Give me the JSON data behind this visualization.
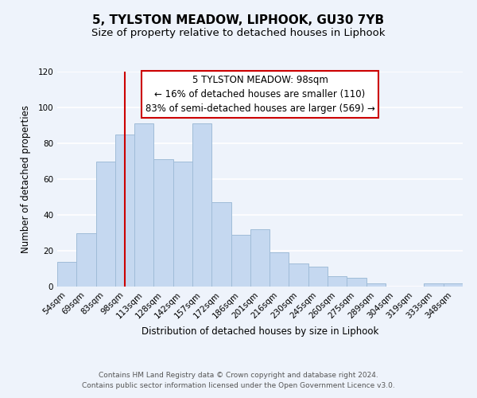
{
  "title": "5, TYLSTON MEADOW, LIPHOOK, GU30 7YB",
  "subtitle": "Size of property relative to detached houses in Liphook",
  "xlabel": "Distribution of detached houses by size in Liphook",
  "ylabel": "Number of detached properties",
  "bar_labels": [
    "54sqm",
    "69sqm",
    "83sqm",
    "98sqm",
    "113sqm",
    "128sqm",
    "142sqm",
    "157sqm",
    "172sqm",
    "186sqm",
    "201sqm",
    "216sqm",
    "230sqm",
    "245sqm",
    "260sqm",
    "275sqm",
    "289sqm",
    "304sqm",
    "319sqm",
    "333sqm",
    "348sqm"
  ],
  "bar_heights": [
    14,
    30,
    70,
    85,
    91,
    71,
    70,
    91,
    47,
    29,
    32,
    19,
    13,
    11,
    6,
    5,
    2,
    0,
    0,
    2,
    2
  ],
  "bar_color": "#c5d8f0",
  "bar_edge_color": "#a0bcd8",
  "vline_x_index": 3,
  "vline_color": "#cc0000",
  "annotation_line1": "5 TYLSTON MEADOW: 98sqm",
  "annotation_line2": "← 16% of detached houses are smaller (110)",
  "annotation_line3": "83% of semi-detached houses are larger (569) →",
  "box_edge_color": "#cc0000",
  "ylim": [
    0,
    120
  ],
  "yticks": [
    0,
    20,
    40,
    60,
    80,
    100,
    120
  ],
  "bg_color": "#eef3fb",
  "plot_bg_color": "#eef3fb",
  "grid_color": "#ffffff",
  "title_fontsize": 11,
  "subtitle_fontsize": 9.5,
  "axis_label_fontsize": 8.5,
  "tick_fontsize": 7.5,
  "annotation_fontsize": 8.5,
  "footer_fontsize": 6.5,
  "footer_line1": "Contains HM Land Registry data © Crown copyright and database right 2024.",
  "footer_line2": "Contains public sector information licensed under the Open Government Licence v3.0."
}
